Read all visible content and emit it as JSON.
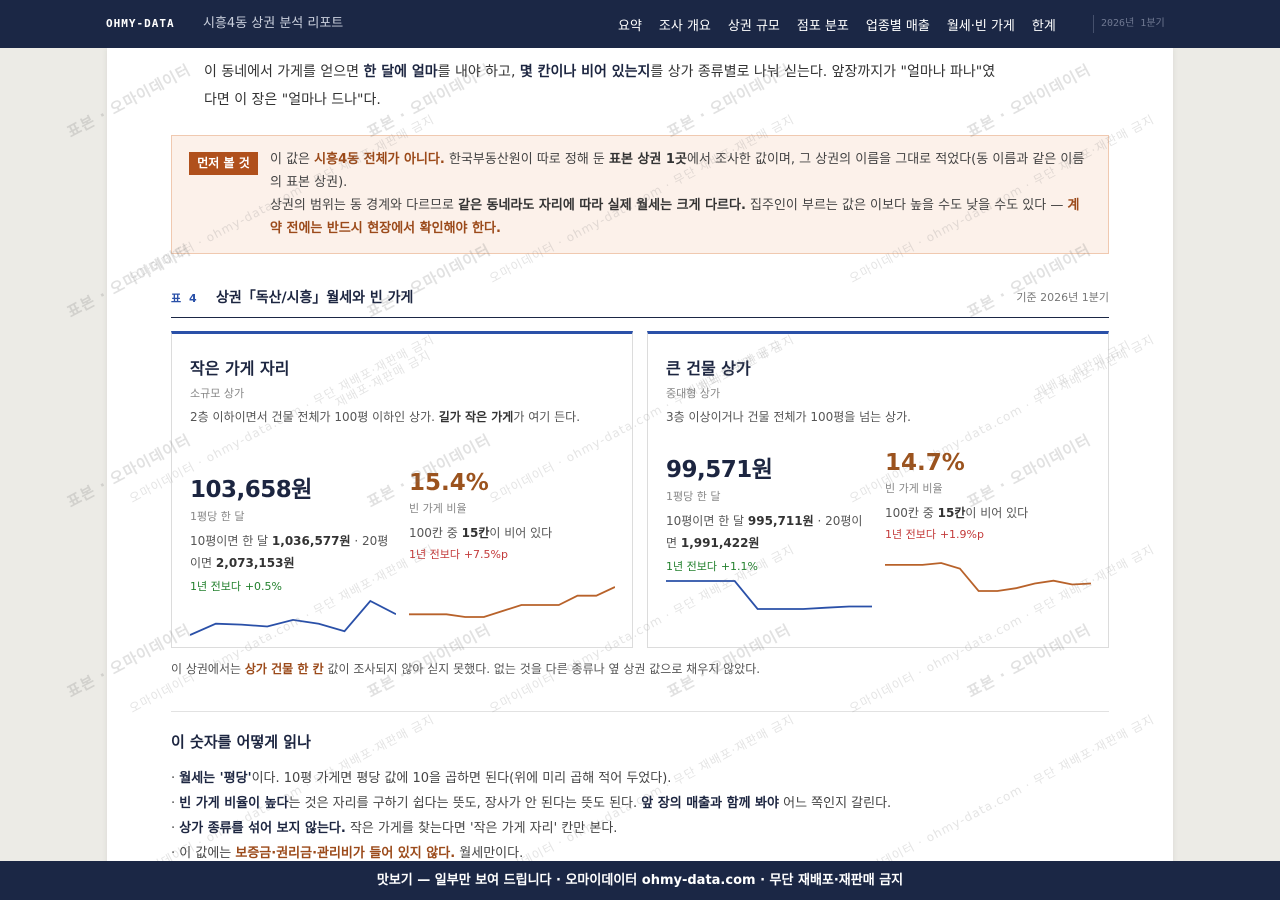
{
  "nav": {
    "brand": "OHMY-DATA",
    "report_title": "시흥4동 상권 분석 리포트",
    "links": [
      "요약",
      "조사 개요",
      "상권 규모",
      "점포 분포",
      "업종별 매출",
      "월세·빈 가게",
      "한계"
    ],
    "date": "2026년 1분기"
  },
  "intro": {
    "p1": "이 동네에서 가게를 얻으면 ",
    "b1": "한 달에 얼마",
    "p2": "를 내야 하고, ",
    "b2": "몇 칸이나 비어 있는지",
    "p3": "를 상가 종류별로 나눠 싣는다. 앞장까지가 \"얼마나 파나\"였다면 이 장은 \"얼마나 드나\"다."
  },
  "note": {
    "tag": "먼저 볼 것",
    "l1a": "이 값은 ",
    "l1b": "시흥4동 전체가 아니다.",
    "l1c": " 한국부동산원이 따로 정해 둔 ",
    "l1d": "표본 상권 1곳",
    "l1e": "에서 조사한 값이며, 그 상권의 이름을 그대로 적었다(동 이름과 같은 이름의 표본 상권).",
    "l2a": "상권의 범위는 동 경계와 다르므로 ",
    "l2b": "같은 동네라도 자리에 따라 실제 월세는 크게 다르다.",
    "l2c": " 집주인이 부르는 값은 이보다 높을 수도 낮을 수도 있다 — ",
    "l2d": "계약 전에는 반드시 현장에서 확인해야 한다."
  },
  "table": {
    "no": "표 4",
    "title": "상권「독산/시흥」월세와 빈 가게",
    "date": "기준 2026년 1분기"
  },
  "cards": [
    {
      "title": "작은 가게 자리",
      "subtitle": "소규모 상가",
      "desc_a": "2층 이하이면서 건물 전체가 100평 이하인 상가. ",
      "desc_b": "길가 작은 가게",
      "desc_c": "가 여기 든다.",
      "rent": "103,658원",
      "rent_label": "1평당 한 달",
      "rent_detail_a": "10평이면 한 달 ",
      "rent_10": "1,036,577원",
      "rent_detail_b": " · 20평이면 ",
      "rent_20": "2,073,153원",
      "rent_yoy_label": "1년 전보다",
      "rent_yoy": "+0.5%",
      "vacancy": "15.4%",
      "vacancy_label": "빈 가게 비율",
      "vac_detail_a": "100칸 중 ",
      "vac_count": "15칸",
      "vac_detail_b": "이 비어 있다",
      "vac_yoy_label": "1년 전보다",
      "vac_yoy": "+7.5%p",
      "rent_trend": [
        100,
        101.2,
        101.1,
        100.9,
        101.6,
        101.2,
        100.4,
        103.6,
        102.2
      ],
      "vac_trend": [
        8.8,
        8.8,
        8.8,
        8.4,
        8.4,
        9.3,
        10.2,
        10.2,
        10.2,
        11.6,
        11.6,
        12.9
      ]
    },
    {
      "title": "큰 건물 상가",
      "subtitle": "중대형 상가",
      "desc_a": "3층 이상이거나 건물 전체가 100평을 넘는 상가.",
      "desc_b": "",
      "desc_c": "",
      "rent": "99,571원",
      "rent_label": "1평당 한 달",
      "rent_detail_a": "10평이면 한 달 ",
      "rent_10": "995,711원",
      "rent_detail_b": " · 20평이면 ",
      "rent_20": "1,991,422원",
      "rent_yoy_label": "1년 전보다",
      "rent_yoy": "+1.1%",
      "vacancy": "14.7%",
      "vacancy_label": "빈 가게 비율",
      "vac_detail_a": "100칸 중 ",
      "vac_count": "15칸",
      "vac_detail_b": "이 비어 있다",
      "vac_yoy_label": "1년 전보다",
      "vac_yoy": "+1.9%p",
      "rent_trend": [
        100.6,
        100.6,
        100.6,
        100.6,
        98.4,
        98.4,
        98.4,
        98.5,
        98.6,
        98.6
      ],
      "vac_trend": [
        13.6,
        13.6,
        13.6,
        13.8,
        13.2,
        10.8,
        10.8,
        11.1,
        11.6,
        11.9,
        11.5,
        11.6
      ]
    }
  ],
  "missing": {
    "a": "이 상권에서는 ",
    "b": "상가 건물 한 칸",
    "c": " 값이 조사되지 않아 싣지 못했다. 없는 것을 다른 종류나 옆 상권 값으로 채우지 않았다."
  },
  "howto": {
    "title": "이 숫자를 어떻게 읽나",
    "i1a": "· ",
    "i1b": "월세는 '평당'",
    "i1c": "이다. 10평 가게면 평당 값에 10을 곱하면 된다(위에 미리 곱해 적어 두었다).",
    "i2a": "· ",
    "i2b": "빈 가게 비율이 높다",
    "i2c": "는 것은 자리를 구하기 쉽다는 뜻도, 장사가 안 된다는 뜻도 된다. ",
    "i2d": "앞 장의 매출과 함께 봐야",
    "i2e": " 어느 쪽인지 갈린다.",
    "i3a": "· ",
    "i3b": "상가 종류를 섞어 보지 않는다.",
    "i3c": " 작은 가게를 찾는다면 '작은 가게 자리' 칸만 본다.",
    "i4a": "· 이 값에는 ",
    "i4b": "보증금·권리금·관리비가 들어 있지 않다.",
    "i4c": " 월세만이다."
  },
  "watermark": {
    "text1": "표본 · 오마이데이터",
    "text2": "오마이데이터 · ohmy-data.com · 무단 재배포·재판매 금지",
    "text3": "재배포·재판매 금지"
  },
  "footer": "맛보기 — 일부만 보여 드립니다 · 오마이데이터 ohmy-data.com · 무단 재배포·재판매 금지",
  "colors": {
    "navy": "#1b2745",
    "accent_blue": "#2a50a8",
    "accent_orange": "#b0501c",
    "up_green": "#23812e",
    "up_red": "#c33a3a"
  }
}
